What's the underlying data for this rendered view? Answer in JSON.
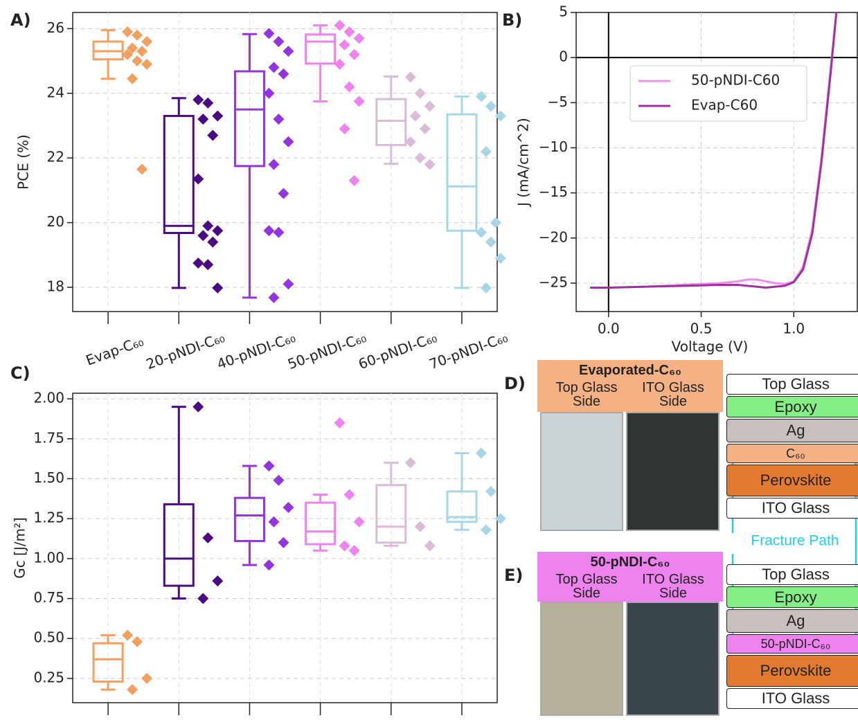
{
  "chart_data": [
    {
      "type": "box",
      "panel_label": "A)",
      "ylabel": "PCE (%)",
      "categories": [
        "Evap-C₆₀",
        "20-pNDI-C₆₀",
        "40-pNDI-C₆₀",
        "50-pNDI-C₆₀",
        "60-pNDI-C₆₀",
        "70-pNDI-C₆₀"
      ],
      "ylim": [
        17.25,
        26.5
      ],
      "yticks": [
        18,
        20,
        22,
        24,
        26
      ],
      "grid": true,
      "boxes": [
        {
          "color": "#f0a060",
          "min": 24.45,
          "q1": 25.05,
          "median": 25.3,
          "q3": 25.6,
          "max": 25.95,
          "points": [
            25.9,
            25.8,
            25.6,
            25.4,
            25.3,
            25.2,
            25.0,
            24.9,
            24.45,
            21.65
          ]
        },
        {
          "color": "#4b0a82",
          "min": 17.98,
          "q1": 19.68,
          "median": 19.9,
          "q3": 23.3,
          "max": 23.85,
          "points": [
            23.8,
            23.7,
            23.3,
            23.2,
            22.7,
            21.35,
            19.9,
            19.75,
            19.6,
            19.4,
            18.75,
            18.7,
            17.98
          ]
        },
        {
          "color": "#9434e0",
          "min": 17.68,
          "q1": 21.75,
          "median": 23.5,
          "q3": 24.68,
          "max": 25.83,
          "points": [
            25.85,
            25.6,
            25.3,
            24.8,
            24.6,
            24.0,
            23.2,
            22.5,
            21.8,
            20.9,
            19.75,
            19.7,
            18.1,
            17.68
          ]
        },
        {
          "color": "#ee82ee",
          "min": 23.75,
          "q1": 24.92,
          "median": 25.6,
          "q3": 25.82,
          "max": 26.1,
          "points": [
            26.1,
            25.9,
            25.7,
            25.5,
            25.2,
            24.9,
            24.2,
            23.75,
            22.9,
            21.3
          ]
        },
        {
          "color": "#d8bcd8",
          "min": 21.82,
          "q1": 22.4,
          "median": 23.15,
          "q3": 23.82,
          "max": 24.52,
          "points": [
            24.5,
            24.0,
            23.6,
            23.3,
            22.9,
            22.5,
            22.0,
            21.8
          ]
        },
        {
          "color": "#a8d6e6",
          "min": 17.98,
          "q1": 19.75,
          "median": 21.12,
          "q3": 23.35,
          "max": 23.9,
          "points": [
            23.9,
            23.6,
            23.3,
            22.2,
            20.0,
            19.7,
            19.4,
            18.9,
            17.98
          ]
        }
      ]
    },
    {
      "type": "line",
      "panel_label": "B)",
      "xlabel": "Voltage (V)",
      "ylabel": "J (mA/cm^2)",
      "x": [
        -0.1,
        0,
        0.2,
        0.4,
        0.6,
        0.7,
        0.75,
        0.8,
        0.85,
        0.9,
        0.95,
        1.0,
        1.05,
        1.1,
        1.15,
        1.2,
        1.23
      ],
      "series": [
        {
          "name": "50-pNDI-C60",
          "color": "#f08cf0",
          "values": [
            -25.5,
            -25.5,
            -25.4,
            -25.2,
            -25.0,
            -24.8,
            -24.6,
            -24.6,
            -24.8,
            -25.0,
            -25.1,
            -24.8,
            -23.2,
            -19,
            -11,
            -1,
            5
          ]
        },
        {
          "name": "Evap-C60",
          "color": "#a0309e",
          "values": [
            -25.5,
            -25.5,
            -25.4,
            -25.3,
            -25.2,
            -25.2,
            -25.3,
            -25.4,
            -25.5,
            -25.4,
            -25.3,
            -24.9,
            -23.5,
            -19.5,
            -11.5,
            -1.5,
            5
          ]
        }
      ],
      "xlim": [
        -0.175,
        1.343
      ],
      "ylim": [
        -28.15,
        5
      ],
      "xticks": [
        {
          "value": 0,
          "label": "0.0"
        },
        {
          "value": 0.5,
          "label": "0.5"
        },
        {
          "value": 1,
          "label": "1.0"
        }
      ],
      "yticks": [
        5,
        0,
        {
          "value": -5,
          "label": "−5"
        },
        {
          "value": -10,
          "label": "−10"
        },
        {
          "value": -15,
          "label": "−15"
        },
        {
          "value": -20,
          "label": "−20"
        },
        {
          "value": -25,
          "label": "−25"
        }
      ],
      "grid": true,
      "legend": "upper center"
    },
    {
      "type": "box",
      "panel_label": "C)",
      "ylabel": "Gc [J/m²]",
      "categories": [
        null,
        null,
        null,
        null,
        null,
        null
      ],
      "ylim": [
        0.098,
        2.035
      ],
      "yticks": [
        {
          "value": 0.25,
          "label": "0.25"
        },
        {
          "value": 0.5,
          "label": "0.50"
        },
        {
          "value": 0.75,
          "label": "0.75"
        },
        {
          "value": 1,
          "label": "1.00"
        },
        {
          "value": 1.25,
          "label": "1.25"
        },
        {
          "value": 1.5,
          "label": "1.50"
        },
        {
          "value": 1.75,
          "label": "1.75"
        },
        {
          "value": 2,
          "label": "2.00"
        }
      ],
      "grid": true,
      "boxes": [
        {
          "color": "#f0a060",
          "min": 0.18,
          "q1": 0.23,
          "median": 0.37,
          "q3": 0.47,
          "max": 0.52,
          "points": [
            0.52,
            0.48,
            0.25,
            0.18
          ]
        },
        {
          "color": "#4b0a82",
          "min": 0.75,
          "q1": 0.83,
          "median": 1.0,
          "q3": 1.34,
          "max": 1.95,
          "points": [
            1.95,
            1.13,
            0.86,
            0.75
          ]
        },
        {
          "color": "#9434e0",
          "min": 0.96,
          "q1": 1.11,
          "median": 1.27,
          "q3": 1.38,
          "max": 1.58,
          "points": [
            1.58,
            1.49,
            1.32,
            1.23,
            1.1,
            0.96
          ]
        },
        {
          "color": "#ee82ee",
          "min": 1.05,
          "q1": 1.09,
          "median": 1.17,
          "q3": 1.35,
          "max": 1.4,
          "points": [
            1.85,
            1.4,
            1.23,
            1.08,
            1.05
          ]
        },
        {
          "color": "#d8bcd8",
          "min": 1.08,
          "q1": 1.1,
          "median": 1.2,
          "q3": 1.46,
          "max": 1.6,
          "points": [
            1.6,
            1.2,
            1.08
          ]
        },
        {
          "color": "#a8d6e6",
          "min": 1.18,
          "q1": 1.23,
          "median": 1.26,
          "q3": 1.42,
          "max": 1.66,
          "points": [
            1.66,
            1.42,
            1.25,
            1.18
          ]
        }
      ]
    }
  ],
  "diagrams": {
    "fracture_label": "Fracture Path",
    "panels": [
      {
        "label": "D)",
        "title": "Evaporated-C₆₀",
        "columns": [
          "Top Glass Side",
          "ITO Glass Side"
        ],
        "layers": [
          "Top Glass",
          "Epoxy",
          "Ag",
          "C₆₀",
          "Perovskite",
          "ITO Glass"
        ]
      },
      {
        "label": "E)",
        "title": "50-pNDI-C₆₀",
        "columns": [
          "Top Glass Side",
          "ITO Glass Side"
        ],
        "layers": [
          "Top Glass",
          "Epoxy",
          "Ag",
          "50-pNDI-C₆₀",
          "Perovskite",
          "ITO Glass"
        ]
      }
    ]
  }
}
